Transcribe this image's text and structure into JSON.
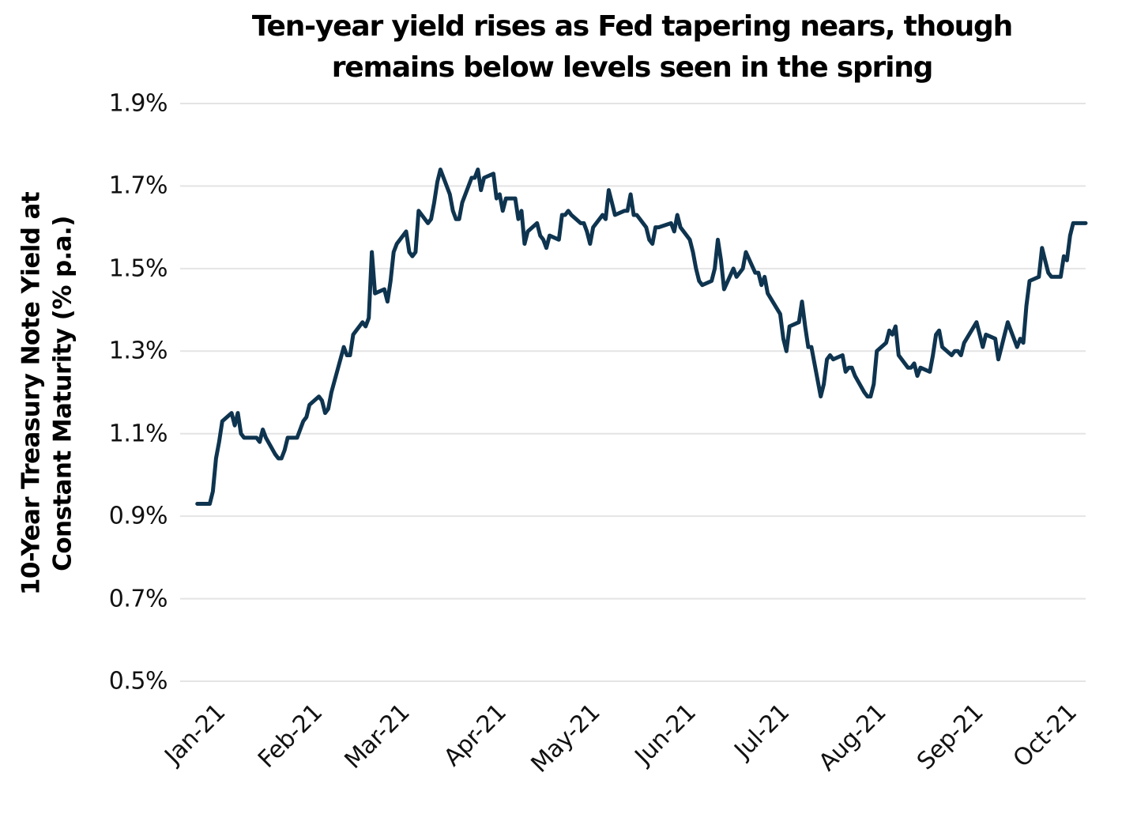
{
  "chart_data": {
    "type": "line",
    "title_line1": "Ten-year yield rises as Fed tapering nears, though",
    "title_line2": "remains below levels seen in the spring",
    "ylabel_line1": "10-Year Treasury Note Yield at",
    "ylabel_line2": "Constant Maturity (% p.a.)",
    "ylim": [
      0.5,
      1.9
    ],
    "xlim": [
      "2020-12-26",
      "2021-10-12"
    ],
    "grid": "horizontal",
    "legend": "none",
    "line_color": "#0e344f",
    "grid_color": "#e4e4e4",
    "y_ticks": [
      {
        "value": 1.9,
        "label": "1.9%"
      },
      {
        "value": 1.7,
        "label": "1.7%"
      },
      {
        "value": 1.5,
        "label": "1.5%"
      },
      {
        "value": 1.3,
        "label": "1.3%"
      },
      {
        "value": 1.1,
        "label": "1.1%"
      },
      {
        "value": 0.9,
        "label": "0.9%"
      },
      {
        "value": 0.7,
        "label": "0.7%"
      },
      {
        "value": 0.5,
        "label": "0.5%"
      }
    ],
    "x_ticks": [
      {
        "date": "2021-01-01",
        "label": "Jan-21"
      },
      {
        "date": "2021-02-01",
        "label": "Feb-21"
      },
      {
        "date": "2021-03-01",
        "label": "Mar-21"
      },
      {
        "date": "2021-04-01",
        "label": "Apr-21"
      },
      {
        "date": "2021-05-01",
        "label": "May-21"
      },
      {
        "date": "2021-06-01",
        "label": "Jun-21"
      },
      {
        "date": "2021-07-01",
        "label": "Jul-21"
      },
      {
        "date": "2021-08-01",
        "label": "Aug-21"
      },
      {
        "date": "2021-09-01",
        "label": "Sep-21"
      },
      {
        "date": "2021-10-01",
        "label": "Oct-21"
      }
    ],
    "series": [
      {
        "name": "10-Year Treasury Note Yield (% p.a.)",
        "dates": [
          "2020-12-31",
          "2021-01-04",
          "2021-01-05",
          "2021-01-06",
          "2021-01-07",
          "2021-01-08",
          "2021-01-11",
          "2021-01-12",
          "2021-01-13",
          "2021-01-14",
          "2021-01-15",
          "2021-01-19",
          "2021-01-20",
          "2021-01-21",
          "2021-01-22",
          "2021-01-25",
          "2021-01-26",
          "2021-01-27",
          "2021-01-28",
          "2021-01-29",
          "2021-02-01",
          "2021-02-02",
          "2021-02-03",
          "2021-02-04",
          "2021-02-05",
          "2021-02-08",
          "2021-02-09",
          "2021-02-10",
          "2021-02-11",
          "2021-02-12",
          "2021-02-16",
          "2021-02-17",
          "2021-02-18",
          "2021-02-19",
          "2021-02-22",
          "2021-02-23",
          "2021-02-24",
          "2021-02-25",
          "2021-02-26",
          "2021-03-01",
          "2021-03-02",
          "2021-03-03",
          "2021-03-04",
          "2021-03-05",
          "2021-03-08",
          "2021-03-09",
          "2021-03-10",
          "2021-03-11",
          "2021-03-12",
          "2021-03-15",
          "2021-03-16",
          "2021-03-17",
          "2021-03-18",
          "2021-03-19",
          "2021-03-22",
          "2021-03-23",
          "2021-03-24",
          "2021-03-25",
          "2021-03-26",
          "2021-03-29",
          "2021-03-30",
          "2021-03-31",
          "2021-04-01",
          "2021-04-02",
          "2021-04-05",
          "2021-04-06",
          "2021-04-07",
          "2021-04-08",
          "2021-04-09",
          "2021-04-12",
          "2021-04-13",
          "2021-04-14",
          "2021-04-15",
          "2021-04-16",
          "2021-04-19",
          "2021-04-20",
          "2021-04-21",
          "2021-04-22",
          "2021-04-23",
          "2021-04-26",
          "2021-04-27",
          "2021-04-28",
          "2021-04-29",
          "2021-04-30",
          "2021-05-03",
          "2021-05-04",
          "2021-05-05",
          "2021-05-06",
          "2021-05-07",
          "2021-05-10",
          "2021-05-11",
          "2021-05-12",
          "2021-05-13",
          "2021-05-14",
          "2021-05-17",
          "2021-05-18",
          "2021-05-19",
          "2021-05-20",
          "2021-05-21",
          "2021-05-24",
          "2021-05-25",
          "2021-05-26",
          "2021-05-27",
          "2021-05-28",
          "2021-06-01",
          "2021-06-02",
          "2021-06-03",
          "2021-06-04",
          "2021-06-07",
          "2021-06-08",
          "2021-06-09",
          "2021-06-10",
          "2021-06-11",
          "2021-06-14",
          "2021-06-15",
          "2021-06-16",
          "2021-06-17",
          "2021-06-18",
          "2021-06-21",
          "2021-06-22",
          "2021-06-23",
          "2021-06-24",
          "2021-06-25",
          "2021-06-28",
          "2021-06-29",
          "2021-06-30",
          "2021-07-01",
          "2021-07-02",
          "2021-07-06",
          "2021-07-07",
          "2021-07-08",
          "2021-07-09",
          "2021-07-12",
          "2021-07-13",
          "2021-07-14",
          "2021-07-15",
          "2021-07-16",
          "2021-07-19",
          "2021-07-20",
          "2021-07-21",
          "2021-07-22",
          "2021-07-23",
          "2021-07-26",
          "2021-07-27",
          "2021-07-28",
          "2021-07-29",
          "2021-07-30",
          "2021-08-02",
          "2021-08-03",
          "2021-08-04",
          "2021-08-05",
          "2021-08-06",
          "2021-08-09",
          "2021-08-10",
          "2021-08-11",
          "2021-08-12",
          "2021-08-13",
          "2021-08-16",
          "2021-08-17",
          "2021-08-18",
          "2021-08-19",
          "2021-08-20",
          "2021-08-23",
          "2021-08-24",
          "2021-08-25",
          "2021-08-26",
          "2021-08-27",
          "2021-08-30",
          "2021-08-31",
          "2021-09-01",
          "2021-09-02",
          "2021-09-03",
          "2021-09-07",
          "2021-09-08",
          "2021-09-09",
          "2021-09-10",
          "2021-09-13",
          "2021-09-14",
          "2021-09-15",
          "2021-09-16",
          "2021-09-17",
          "2021-09-20",
          "2021-09-21",
          "2021-09-22",
          "2021-09-23",
          "2021-09-24",
          "2021-09-27",
          "2021-09-28",
          "2021-09-29",
          "2021-09-30",
          "2021-10-01",
          "2021-10-04",
          "2021-10-05",
          "2021-10-06",
          "2021-10-07",
          "2021-10-08",
          "2021-10-12"
        ],
        "values": [
          0.93,
          0.93,
          0.96,
          1.04,
          1.08,
          1.13,
          1.15,
          1.12,
          1.15,
          1.1,
          1.09,
          1.09,
          1.08,
          1.11,
          1.09,
          1.05,
          1.04,
          1.04,
          1.06,
          1.09,
          1.09,
          1.11,
          1.13,
          1.14,
          1.17,
          1.19,
          1.18,
          1.15,
          1.16,
          1.2,
          1.31,
          1.29,
          1.29,
          1.34,
          1.37,
          1.36,
          1.38,
          1.54,
          1.44,
          1.45,
          1.42,
          1.47,
          1.54,
          1.56,
          1.59,
          1.54,
          1.53,
          1.54,
          1.64,
          1.61,
          1.62,
          1.66,
          1.71,
          1.74,
          1.68,
          1.64,
          1.62,
          1.62,
          1.66,
          1.72,
          1.72,
          1.74,
          1.69,
          1.72,
          1.73,
          1.67,
          1.68,
          1.64,
          1.67,
          1.67,
          1.62,
          1.64,
          1.56,
          1.59,
          1.61,
          1.58,
          1.57,
          1.55,
          1.58,
          1.57,
          1.63,
          1.63,
          1.64,
          1.63,
          1.61,
          1.61,
          1.59,
          1.56,
          1.6,
          1.63,
          1.62,
          1.69,
          1.66,
          1.63,
          1.64,
          1.64,
          1.68,
          1.63,
          1.63,
          1.6,
          1.57,
          1.56,
          1.6,
          1.6,
          1.61,
          1.59,
          1.63,
          1.6,
          1.57,
          1.54,
          1.5,
          1.47,
          1.46,
          1.47,
          1.5,
          1.57,
          1.52,
          1.45,
          1.5,
          1.48,
          1.49,
          1.5,
          1.54,
          1.49,
          1.49,
          1.46,
          1.48,
          1.44,
          1.39,
          1.33,
          1.3,
          1.36,
          1.37,
          1.42,
          1.36,
          1.31,
          1.31,
          1.19,
          1.22,
          1.28,
          1.29,
          1.28,
          1.29,
          1.25,
          1.26,
          1.26,
          1.24,
          1.2,
          1.19,
          1.19,
          1.22,
          1.3,
          1.32,
          1.35,
          1.34,
          1.36,
          1.29,
          1.26,
          1.26,
          1.27,
          1.24,
          1.26,
          1.25,
          1.29,
          1.34,
          1.35,
          1.31,
          1.29,
          1.3,
          1.3,
          1.29,
          1.32,
          1.37,
          1.34,
          1.31,
          1.34,
          1.33,
          1.28,
          1.31,
          1.34,
          1.37,
          1.31,
          1.33,
          1.32,
          1.41,
          1.47,
          1.48,
          1.55,
          1.52,
          1.49,
          1.48,
          1.48,
          1.53,
          1.52,
          1.58,
          1.61,
          1.61
        ]
      }
    ]
  }
}
